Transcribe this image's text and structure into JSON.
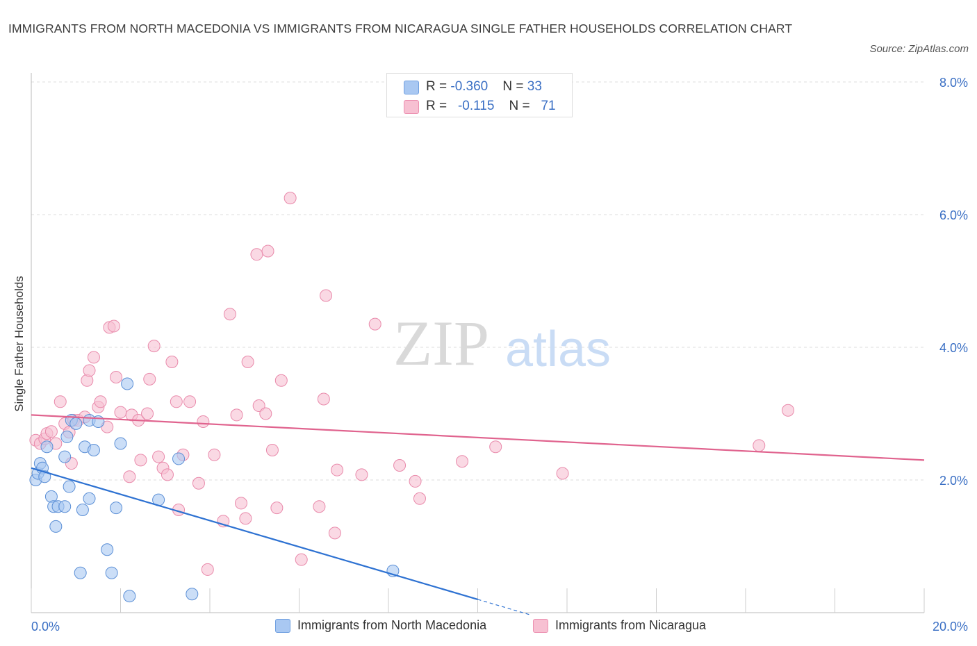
{
  "chart_data": {
    "type": "scatter",
    "title": "IMMIGRANTS FROM NORTH MACEDONIA VS IMMIGRANTS FROM NICARAGUA SINGLE FATHER HOUSEHOLDS CORRELATION CHART",
    "source": "Source: ZipAtlas.com",
    "watermark_main": "ZIP",
    "watermark_sub": "atlas",
    "xlabel": "",
    "ylabel": "Single Father Households",
    "xlim": [
      0,
      20
    ],
    "ylim": [
      0,
      8
    ],
    "x_tick_labels": [
      "0.0%",
      "20.0%"
    ],
    "y_tick_values": [
      2,
      4,
      6,
      8
    ],
    "y_tick_labels": [
      "2.0%",
      "4.0%",
      "6.0%",
      "8.0%"
    ],
    "grid": true,
    "legend_top": [
      {
        "r_label": "R = ",
        "r": "-0.360",
        "n_label": "N = ",
        "n": "33",
        "color": "#a9c8f2",
        "stroke": "#6f9fe0"
      },
      {
        "r_label": "R = ",
        "r": "-0.115",
        "n_label": "N = ",
        "n": "71",
        "color": "#f7c0d2",
        "stroke": "#ec8fb0"
      }
    ],
    "series": [
      {
        "name": "Immigrants from North Macedonia",
        "color": "#a9c8f2",
        "stroke": "#5b8fd6",
        "line_color": "#2e72d2",
        "trend": {
          "x0": 0,
          "y0": 2.18,
          "x1": 10.0,
          "y1": 0.2,
          "dash_to_x": 11.2
        },
        "points": [
          [
            0.1,
            2.0
          ],
          [
            0.15,
            2.1
          ],
          [
            0.2,
            2.25
          ],
          [
            0.25,
            2.18
          ],
          [
            0.3,
            2.05
          ],
          [
            0.35,
            2.5
          ],
          [
            0.45,
            1.75
          ],
          [
            0.5,
            1.6
          ],
          [
            0.55,
            1.3
          ],
          [
            0.6,
            1.6
          ],
          [
            0.75,
            1.6
          ],
          [
            0.75,
            2.35
          ],
          [
            0.8,
            2.65
          ],
          [
            0.85,
            1.9
          ],
          [
            0.9,
            2.9
          ],
          [
            1.0,
            2.85
          ],
          [
            1.1,
            0.6
          ],
          [
            1.15,
            1.55
          ],
          [
            1.2,
            2.5
          ],
          [
            1.3,
            2.9
          ],
          [
            1.3,
            1.72
          ],
          [
            1.4,
            2.45
          ],
          [
            1.5,
            2.88
          ],
          [
            1.7,
            0.95
          ],
          [
            1.8,
            0.6
          ],
          [
            1.9,
            1.58
          ],
          [
            2.0,
            2.55
          ],
          [
            2.15,
            3.45
          ],
          [
            2.2,
            0.25
          ],
          [
            2.85,
            1.7
          ],
          [
            3.3,
            2.32
          ],
          [
            3.6,
            0.28
          ],
          [
            8.1,
            0.63
          ]
        ]
      },
      {
        "name": "Immigrants from Nicaragua",
        "color": "#f7c0d2",
        "stroke": "#e98aab",
        "line_color": "#e0638e",
        "trend": {
          "x0": 0,
          "y0": 2.98,
          "x1": 20,
          "y1": 2.3
        },
        "points": [
          [
            0.1,
            2.6
          ],
          [
            0.2,
            2.55
          ],
          [
            0.3,
            2.62
          ],
          [
            0.35,
            2.7
          ],
          [
            0.45,
            2.73
          ],
          [
            0.55,
            2.55
          ],
          [
            0.65,
            3.18
          ],
          [
            0.75,
            2.85
          ],
          [
            0.85,
            2.72
          ],
          [
            0.9,
            2.25
          ],
          [
            0.95,
            2.9
          ],
          [
            1.05,
            2.9
          ],
          [
            1.2,
            2.95
          ],
          [
            1.25,
            3.5
          ],
          [
            1.3,
            3.65
          ],
          [
            1.4,
            3.85
          ],
          [
            1.5,
            3.1
          ],
          [
            1.55,
            3.18
          ],
          [
            1.7,
            2.8
          ],
          [
            1.75,
            4.3
          ],
          [
            1.85,
            4.32
          ],
          [
            1.9,
            3.55
          ],
          [
            2.0,
            3.02
          ],
          [
            2.2,
            2.05
          ],
          [
            2.25,
            2.98
          ],
          [
            2.4,
            2.9
          ],
          [
            2.45,
            2.3
          ],
          [
            2.6,
            3.0
          ],
          [
            2.65,
            3.52
          ],
          [
            2.75,
            4.02
          ],
          [
            2.85,
            2.35
          ],
          [
            2.95,
            2.18
          ],
          [
            3.05,
            2.08
          ],
          [
            3.15,
            3.78
          ],
          [
            3.25,
            3.18
          ],
          [
            3.3,
            1.55
          ],
          [
            3.4,
            2.38
          ],
          [
            3.55,
            3.18
          ],
          [
            3.75,
            1.95
          ],
          [
            3.85,
            2.88
          ],
          [
            3.95,
            0.65
          ],
          [
            4.1,
            2.38
          ],
          [
            4.3,
            1.38
          ],
          [
            4.45,
            4.5
          ],
          [
            4.6,
            2.98
          ],
          [
            4.7,
            1.65
          ],
          [
            4.8,
            1.42
          ],
          [
            4.85,
            3.78
          ],
          [
            5.05,
            5.4
          ],
          [
            5.1,
            3.12
          ],
          [
            5.25,
            3.0
          ],
          [
            5.3,
            5.45
          ],
          [
            5.4,
            2.45
          ],
          [
            5.5,
            1.58
          ],
          [
            5.6,
            3.5
          ],
          [
            5.8,
            6.25
          ],
          [
            6.05,
            0.8
          ],
          [
            6.45,
            1.6
          ],
          [
            6.55,
            3.22
          ],
          [
            6.6,
            4.78
          ],
          [
            6.8,
            1.2
          ],
          [
            6.85,
            2.15
          ],
          [
            7.4,
            2.08
          ],
          [
            7.7,
            4.35
          ],
          [
            8.25,
            2.22
          ],
          [
            8.6,
            1.98
          ],
          [
            8.7,
            1.72
          ],
          [
            9.65,
            2.28
          ],
          [
            10.4,
            2.5
          ],
          [
            11.9,
            2.1
          ],
          [
            16.3,
            2.52
          ],
          [
            16.95,
            3.05
          ]
        ]
      }
    ]
  }
}
